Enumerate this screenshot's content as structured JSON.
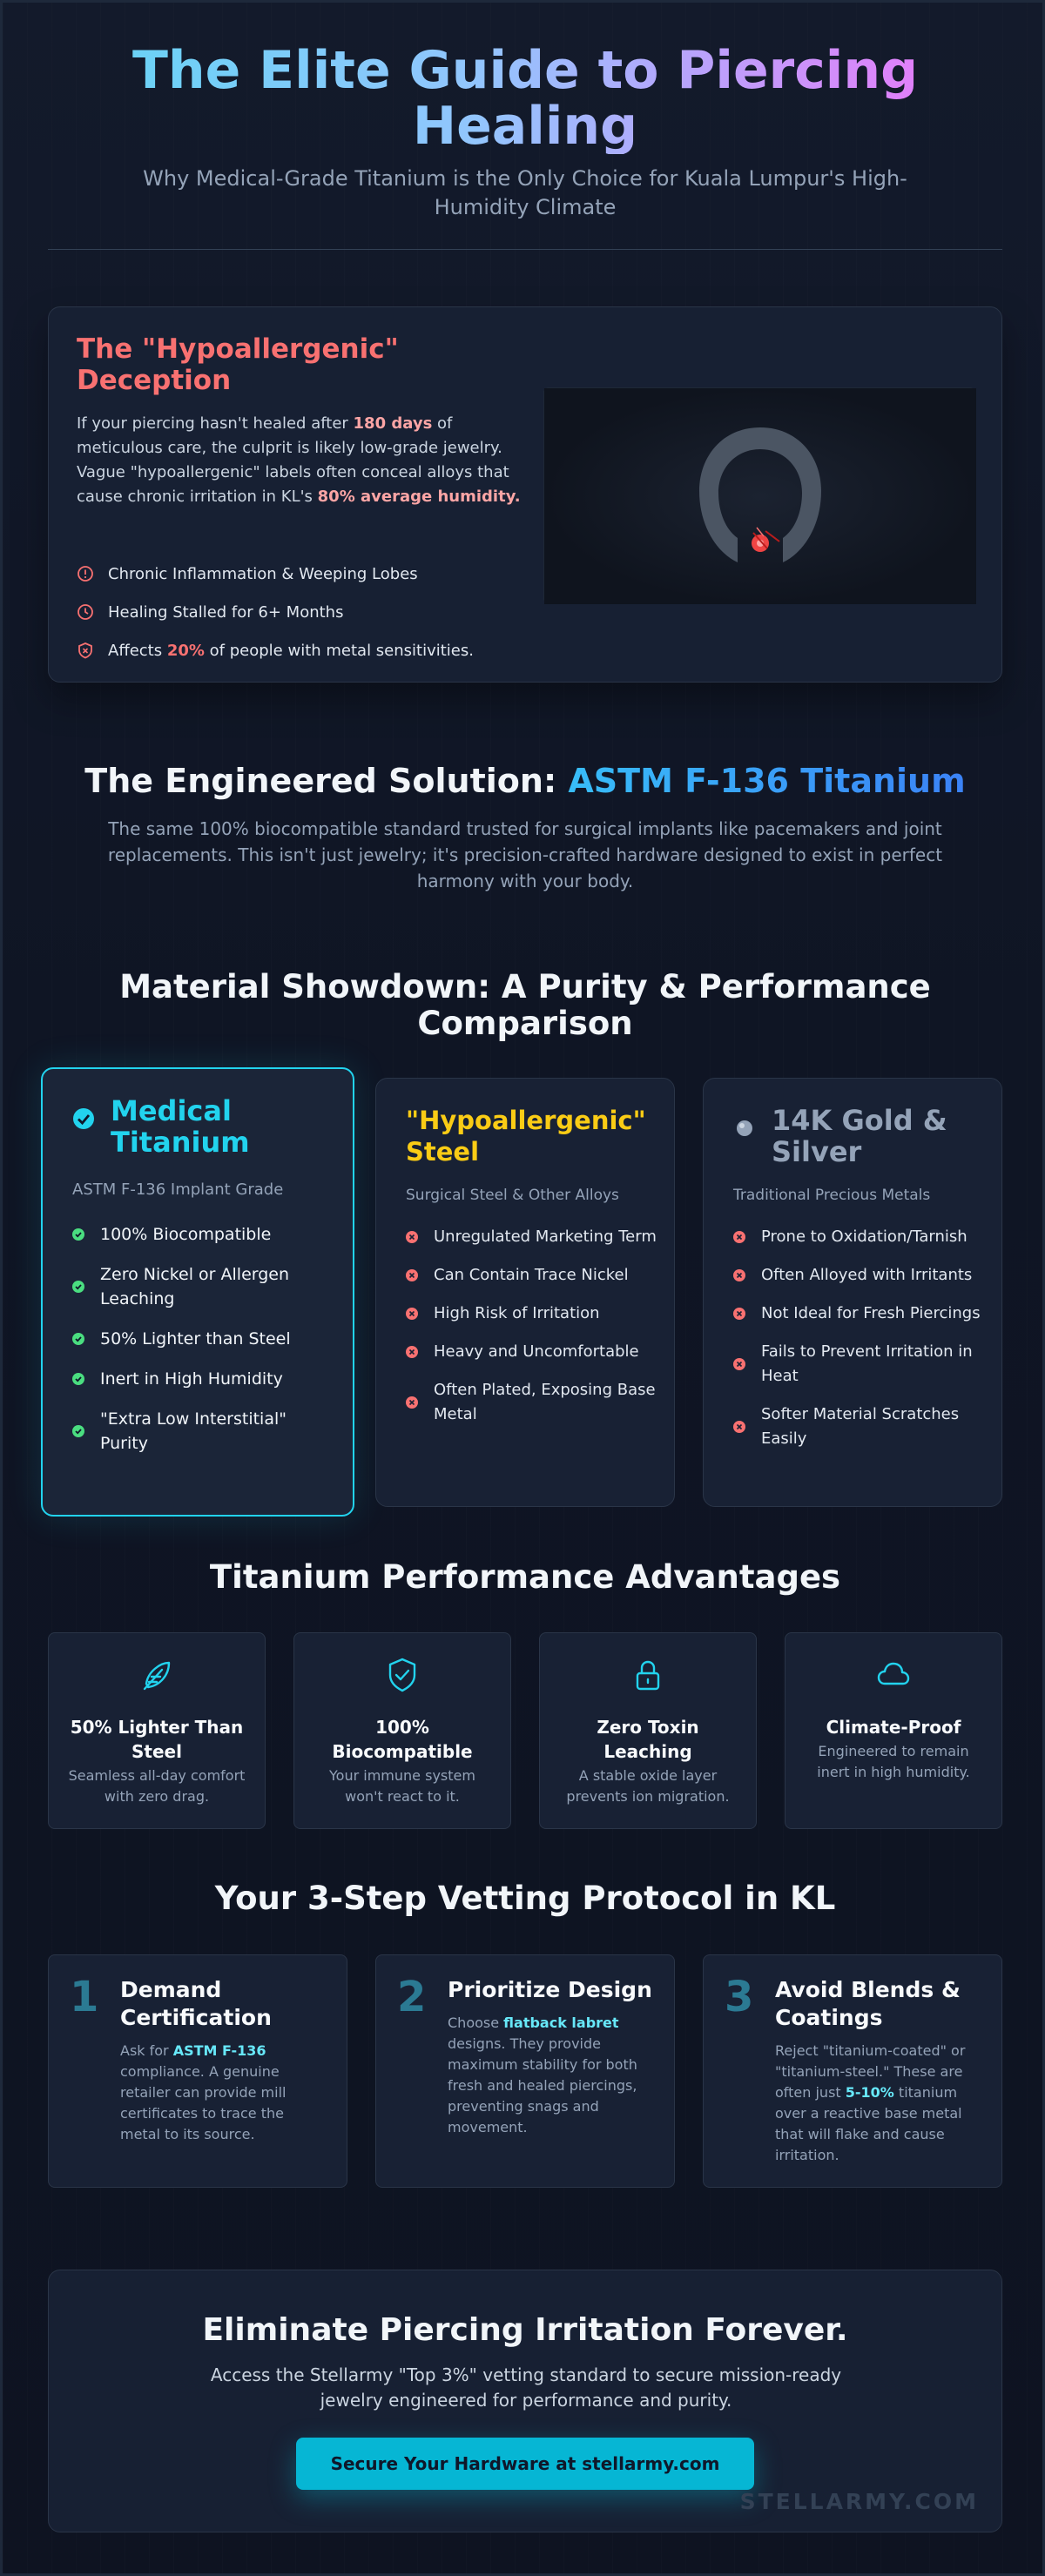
{
  "header": {
    "title": "The Elite Guide to Piercing Healing",
    "subtitle": "Why Medical-Grade Titanium is the Only Choice for Kuala Lumpur's High-Humidity Climate"
  },
  "deception": {
    "title": "The \"Hypoallergenic\" Deception",
    "body_1": "If your piercing hasn't healed after ",
    "body_hl_1": "180 days",
    "body_2": " of meticulous care, the culprit is likely low-grade jewelry. Vague \"hypoallergenic\" labels often conceal alloys that cause chronic irritation in KL's ",
    "body_hl_2": "80% average humidity.",
    "items": [
      {
        "text": "Chronic Inflammation & Weeping Lobes",
        "icon": "alert-circle-icon"
      },
      {
        "text": "Healing Stalled for 6+ Months",
        "icon": "clock-icon"
      }
    ],
    "item3_pre": "Affects ",
    "item3_hl": "20%",
    "item3_post": " of people with metal sensitivities.",
    "item3_icon": "shield-alert-icon"
  },
  "solution": {
    "title_pre": "The Engineered Solution: ",
    "title_hl": "ASTM F-136 Titanium",
    "body": "The same 100% biocompatible standard trusted for surgical implants like pacemakers and joint replacements. This isn't just jewelry; it's precision-crafted hardware designed to exist in perfect harmony with your body."
  },
  "showdown": {
    "title": "Material Showdown: A Purity & Performance Comparison",
    "materials": [
      {
        "name": "Medical Titanium",
        "subtitle": "ASTM F-136 Implant Grade",
        "color": "#22d3ee",
        "items": [
          "100% Biocompatible",
          "Zero Nickel or Allergen Leaching",
          "50% Lighter than Steel",
          "Inert in High Humidity",
          "\"Extra Low Interstitial\" Purity"
        ]
      },
      {
        "name": "\"Hypoallergenic\" Steel",
        "subtitle": "Surgical Steel & Other Alloys",
        "color": "#facc15",
        "items": [
          "Unregulated Marketing Term",
          "Can Contain Trace Nickel",
          "High Risk of Irritation",
          "Heavy and Uncomfortable",
          "Often Plated, Exposing Base Metal"
        ]
      },
      {
        "name": "14K Gold & Silver",
        "subtitle": "Traditional Precious Metals",
        "color": "#94a3b8",
        "items": [
          "Prone to Oxidation/Tarnish",
          "Often Alloyed with Irritants",
          "Not Ideal for Fresh Piercings",
          "Fails to Prevent Irritation in Heat",
          "Softer Material Scratches Easily"
        ]
      }
    ]
  },
  "advantages": {
    "title": "Titanium Performance Advantages",
    "items": [
      {
        "title": "50% Lighter Than Steel",
        "desc": "Seamless all-day comfort with zero drag.",
        "icon": "feather-icon"
      },
      {
        "title": "100% Biocompatible",
        "desc": "Your immune system won't react to it.",
        "icon": "shield-check-icon"
      },
      {
        "title": "Zero Toxin Leaching",
        "desc": "A stable oxide layer prevents ion migration.",
        "icon": "lock-icon"
      },
      {
        "title": "Climate-Proof",
        "desc": "Engineered to remain inert in high humidity.",
        "icon": "cloud-icon"
      }
    ]
  },
  "steps": {
    "title": "Your 3-Step Vetting Protocol in KL",
    "items": [
      {
        "num": "1",
        "title": "Demand Certification",
        "pre": "Ask for ",
        "hl": "ASTM F-136",
        "post": " compliance. A genuine retailer can provide mill certificates to trace the metal to its source."
      },
      {
        "num": "2",
        "title": "Prioritize Design",
        "pre": "Choose ",
        "hl": "flatback labret",
        "post": " designs. They provide maximum stability for both fresh and healed piercings, preventing snags and movement."
      },
      {
        "num": "3",
        "title": "Avoid Blends & Coatings",
        "pre": "Reject \"titanium-coated\" or \"titanium-steel.\" These are often just ",
        "hl": "5-10%",
        "post": " titanium over a reactive base metal that will flake and cause irritation."
      }
    ]
  },
  "cta": {
    "title": "Eliminate Piercing Irritation Forever.",
    "body": "Access the Stellarmy \"Top 3%\" vetting standard to secure mission-ready jewelry engineered for performance and purity.",
    "button": "Secure Your Hardware at stellarmy.com",
    "watermark": "STELLARMY.COM"
  },
  "colors": {
    "accent": "#22d3ee",
    "warning": "#f87171",
    "gold": "#facc15",
    "success": "#4ade80",
    "background": "#0f1524"
  }
}
